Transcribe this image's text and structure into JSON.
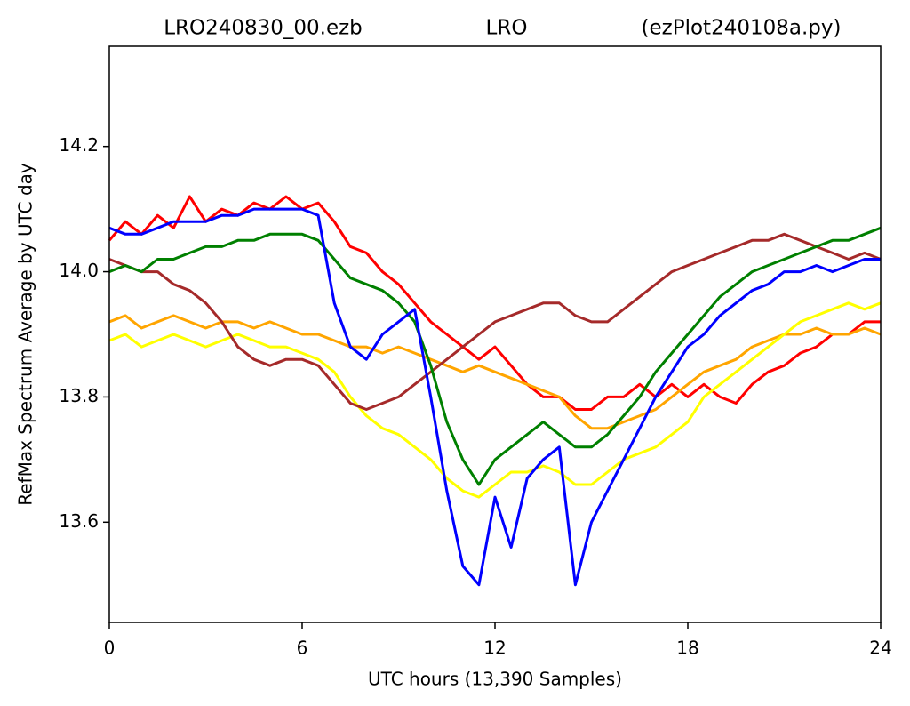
{
  "chart_data": {
    "type": "line",
    "title": [
      "LRO240830_00.ezb",
      "LRO",
      "(ezPlot240108a.py)"
    ],
    "x_label": "UTC hours  (13,390 Samples)",
    "y_label": "RefMax Spectrum Average by UTC day",
    "xlim": [
      0,
      24
    ],
    "xticks": [
      0,
      6,
      12,
      18,
      24
    ],
    "ylim": [
      13.44,
      14.36
    ],
    "yticks": [
      13.6,
      13.8,
      {
        "value": 14,
        "label": "14.0"
      },
      14.2
    ],
    "grid": false,
    "x": [
      0,
      0.5,
      1,
      1.5,
      2,
      2.5,
      3,
      3.5,
      4,
      4.5,
      5,
      5.5,
      6,
      6.5,
      7,
      7.5,
      8,
      8.5,
      9,
      9.5,
      10,
      10.5,
      11,
      11.5,
      12,
      12.5,
      13,
      13.5,
      14,
      14.5,
      15,
      15.5,
      16,
      16.5,
      17,
      17.5,
      18,
      18.5,
      19,
      19.5,
      20,
      20.5,
      21,
      21.5,
      22,
      22.5,
      23,
      23.5,
      24
    ],
    "series": [
      {
        "color": "#ff0000",
        "values": [
          14.05,
          14.08,
          14.06,
          14.09,
          14.07,
          14.12,
          14.08,
          14.1,
          14.09,
          14.11,
          14.1,
          14.12,
          14.1,
          14.11,
          14.08,
          14.04,
          14.03,
          14.0,
          13.98,
          13.95,
          13.92,
          13.9,
          13.88,
          13.86,
          13.88,
          13.85,
          13.82,
          13.8,
          13.8,
          13.78,
          13.78,
          13.8,
          13.8,
          13.82,
          13.8,
          13.82,
          13.8,
          13.82,
          13.8,
          13.79,
          13.82,
          13.84,
          13.85,
          13.87,
          13.88,
          13.9,
          13.9,
          13.92,
          13.92
        ]
      },
      {
        "color": "#ffa500",
        "values": [
          13.92,
          13.93,
          13.91,
          13.92,
          13.93,
          13.92,
          13.91,
          13.92,
          13.92,
          13.91,
          13.92,
          13.91,
          13.9,
          13.9,
          13.89,
          13.88,
          13.88,
          13.87,
          13.88,
          13.87,
          13.86,
          13.85,
          13.84,
          13.85,
          13.84,
          13.83,
          13.82,
          13.81,
          13.8,
          13.77,
          13.75,
          13.75,
          13.76,
          13.77,
          13.78,
          13.8,
          13.82,
          13.84,
          13.85,
          13.86,
          13.88,
          13.89,
          13.9,
          13.9,
          13.91,
          13.9,
          13.9,
          13.91,
          13.9
        ]
      },
      {
        "color": "#ffff00",
        "values": [
          13.89,
          13.9,
          13.88,
          13.89,
          13.9,
          13.89,
          13.88,
          13.89,
          13.9,
          13.89,
          13.88,
          13.88,
          13.87,
          13.86,
          13.84,
          13.8,
          13.77,
          13.75,
          13.74,
          13.72,
          13.7,
          13.67,
          13.65,
          13.64,
          13.66,
          13.68,
          13.68,
          13.69,
          13.68,
          13.66,
          13.66,
          13.68,
          13.7,
          13.71,
          13.72,
          13.74,
          13.76,
          13.8,
          13.82,
          13.84,
          13.86,
          13.88,
          13.9,
          13.92,
          13.93,
          13.94,
          13.95,
          13.94,
          13.95
        ]
      },
      {
        "color": "#a52a2a",
        "values": [
          14.02,
          14.01,
          14.0,
          14.0,
          13.98,
          13.97,
          13.95,
          13.92,
          13.88,
          13.86,
          13.85,
          13.86,
          13.86,
          13.85,
          13.82,
          13.79,
          13.78,
          13.79,
          13.8,
          13.82,
          13.84,
          13.86,
          13.88,
          13.9,
          13.92,
          13.93,
          13.94,
          13.95,
          13.95,
          13.93,
          13.92,
          13.92,
          13.94,
          13.96,
          13.98,
          14.0,
          14.01,
          14.02,
          14.03,
          14.04,
          14.05,
          14.05,
          14.06,
          14.05,
          14.04,
          14.03,
          14.02,
          14.03,
          14.02
        ]
      },
      {
        "color": "#008000",
        "values": [
          14.0,
          14.01,
          14.0,
          14.02,
          14.02,
          14.03,
          14.04,
          14.04,
          14.05,
          14.05,
          14.06,
          14.06,
          14.06,
          14.05,
          14.02,
          13.99,
          13.98,
          13.97,
          13.95,
          13.92,
          13.85,
          13.76,
          13.7,
          13.66,
          13.7,
          13.72,
          13.74,
          13.76,
          13.74,
          13.72,
          13.72,
          13.74,
          13.77,
          13.8,
          13.84,
          13.87,
          13.9,
          13.93,
          13.96,
          13.98,
          14.0,
          14.01,
          14.02,
          14.03,
          14.04,
          14.05,
          14.05,
          14.06,
          14.07
        ]
      },
      {
        "color": "#0000ff",
        "values": [
          14.07,
          14.06,
          14.06,
          14.07,
          14.08,
          14.08,
          14.08,
          14.09,
          14.09,
          14.1,
          14.1,
          14.1,
          14.1,
          14.09,
          13.95,
          13.88,
          13.86,
          13.9,
          13.92,
          13.94,
          13.8,
          13.65,
          13.53,
          13.5,
          13.64,
          13.56,
          13.67,
          13.7,
          13.72,
          13.5,
          13.6,
          13.65,
          13.7,
          13.75,
          13.8,
          13.84,
          13.88,
          13.9,
          13.93,
          13.95,
          13.97,
          13.98,
          14.0,
          14.0,
          14.01,
          14.0,
          14.01,
          14.02,
          14.02
        ]
      }
    ]
  }
}
